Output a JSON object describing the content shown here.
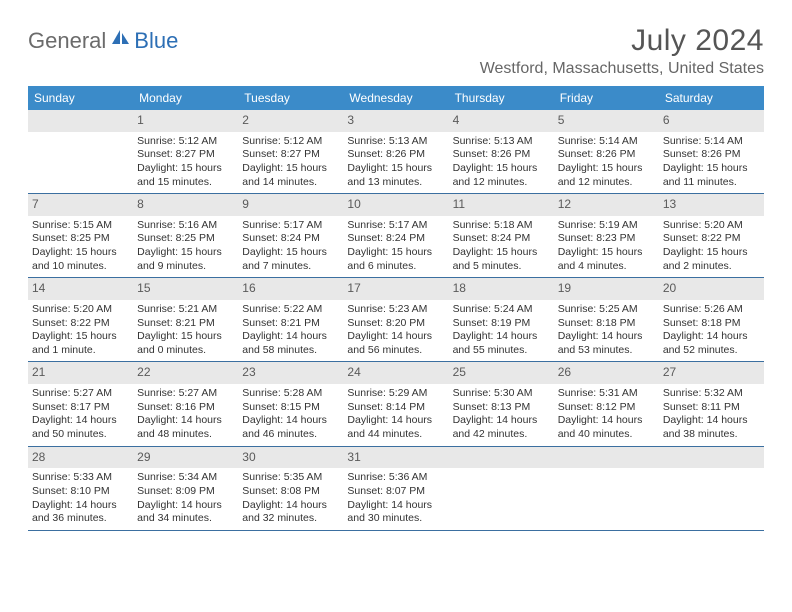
{
  "logo": {
    "text1": "General",
    "text2": "Blue"
  },
  "title": "July 2024",
  "location": "Westford, Massachusetts, United States",
  "colors": {
    "header_bg": "#3b8bc9",
    "header_text": "#ffffff",
    "daynum_bg": "#e8e8e8",
    "border": "#3b6fa0",
    "logo_gray": "#6b6b6b",
    "logo_blue": "#2d6fb5"
  },
  "dow": [
    "Sunday",
    "Monday",
    "Tuesday",
    "Wednesday",
    "Thursday",
    "Friday",
    "Saturday"
  ],
  "weeks": [
    [
      {
        "n": "",
        "l1": "",
        "l2": "",
        "l3": "",
        "l4": ""
      },
      {
        "n": "1",
        "l1": "Sunrise: 5:12 AM",
        "l2": "Sunset: 8:27 PM",
        "l3": "Daylight: 15 hours",
        "l4": "and 15 minutes."
      },
      {
        "n": "2",
        "l1": "Sunrise: 5:12 AM",
        "l2": "Sunset: 8:27 PM",
        "l3": "Daylight: 15 hours",
        "l4": "and 14 minutes."
      },
      {
        "n": "3",
        "l1": "Sunrise: 5:13 AM",
        "l2": "Sunset: 8:26 PM",
        "l3": "Daylight: 15 hours",
        "l4": "and 13 minutes."
      },
      {
        "n": "4",
        "l1": "Sunrise: 5:13 AM",
        "l2": "Sunset: 8:26 PM",
        "l3": "Daylight: 15 hours",
        "l4": "and 12 minutes."
      },
      {
        "n": "5",
        "l1": "Sunrise: 5:14 AM",
        "l2": "Sunset: 8:26 PM",
        "l3": "Daylight: 15 hours",
        "l4": "and 12 minutes."
      },
      {
        "n": "6",
        "l1": "Sunrise: 5:14 AM",
        "l2": "Sunset: 8:26 PM",
        "l3": "Daylight: 15 hours",
        "l4": "and 11 minutes."
      }
    ],
    [
      {
        "n": "7",
        "l1": "Sunrise: 5:15 AM",
        "l2": "Sunset: 8:25 PM",
        "l3": "Daylight: 15 hours",
        "l4": "and 10 minutes."
      },
      {
        "n": "8",
        "l1": "Sunrise: 5:16 AM",
        "l2": "Sunset: 8:25 PM",
        "l3": "Daylight: 15 hours",
        "l4": "and 9 minutes."
      },
      {
        "n": "9",
        "l1": "Sunrise: 5:17 AM",
        "l2": "Sunset: 8:24 PM",
        "l3": "Daylight: 15 hours",
        "l4": "and 7 minutes."
      },
      {
        "n": "10",
        "l1": "Sunrise: 5:17 AM",
        "l2": "Sunset: 8:24 PM",
        "l3": "Daylight: 15 hours",
        "l4": "and 6 minutes."
      },
      {
        "n": "11",
        "l1": "Sunrise: 5:18 AM",
        "l2": "Sunset: 8:24 PM",
        "l3": "Daylight: 15 hours",
        "l4": "and 5 minutes."
      },
      {
        "n": "12",
        "l1": "Sunrise: 5:19 AM",
        "l2": "Sunset: 8:23 PM",
        "l3": "Daylight: 15 hours",
        "l4": "and 4 minutes."
      },
      {
        "n": "13",
        "l1": "Sunrise: 5:20 AM",
        "l2": "Sunset: 8:22 PM",
        "l3": "Daylight: 15 hours",
        "l4": "and 2 minutes."
      }
    ],
    [
      {
        "n": "14",
        "l1": "Sunrise: 5:20 AM",
        "l2": "Sunset: 8:22 PM",
        "l3": "Daylight: 15 hours",
        "l4": "and 1 minute."
      },
      {
        "n": "15",
        "l1": "Sunrise: 5:21 AM",
        "l2": "Sunset: 8:21 PM",
        "l3": "Daylight: 15 hours",
        "l4": "and 0 minutes."
      },
      {
        "n": "16",
        "l1": "Sunrise: 5:22 AM",
        "l2": "Sunset: 8:21 PM",
        "l3": "Daylight: 14 hours",
        "l4": "and 58 minutes."
      },
      {
        "n": "17",
        "l1": "Sunrise: 5:23 AM",
        "l2": "Sunset: 8:20 PM",
        "l3": "Daylight: 14 hours",
        "l4": "and 56 minutes."
      },
      {
        "n": "18",
        "l1": "Sunrise: 5:24 AM",
        "l2": "Sunset: 8:19 PM",
        "l3": "Daylight: 14 hours",
        "l4": "and 55 minutes."
      },
      {
        "n": "19",
        "l1": "Sunrise: 5:25 AM",
        "l2": "Sunset: 8:18 PM",
        "l3": "Daylight: 14 hours",
        "l4": "and 53 minutes."
      },
      {
        "n": "20",
        "l1": "Sunrise: 5:26 AM",
        "l2": "Sunset: 8:18 PM",
        "l3": "Daylight: 14 hours",
        "l4": "and 52 minutes."
      }
    ],
    [
      {
        "n": "21",
        "l1": "Sunrise: 5:27 AM",
        "l2": "Sunset: 8:17 PM",
        "l3": "Daylight: 14 hours",
        "l4": "and 50 minutes."
      },
      {
        "n": "22",
        "l1": "Sunrise: 5:27 AM",
        "l2": "Sunset: 8:16 PM",
        "l3": "Daylight: 14 hours",
        "l4": "and 48 minutes."
      },
      {
        "n": "23",
        "l1": "Sunrise: 5:28 AM",
        "l2": "Sunset: 8:15 PM",
        "l3": "Daylight: 14 hours",
        "l4": "and 46 minutes."
      },
      {
        "n": "24",
        "l1": "Sunrise: 5:29 AM",
        "l2": "Sunset: 8:14 PM",
        "l3": "Daylight: 14 hours",
        "l4": "and 44 minutes."
      },
      {
        "n": "25",
        "l1": "Sunrise: 5:30 AM",
        "l2": "Sunset: 8:13 PM",
        "l3": "Daylight: 14 hours",
        "l4": "and 42 minutes."
      },
      {
        "n": "26",
        "l1": "Sunrise: 5:31 AM",
        "l2": "Sunset: 8:12 PM",
        "l3": "Daylight: 14 hours",
        "l4": "and 40 minutes."
      },
      {
        "n": "27",
        "l1": "Sunrise: 5:32 AM",
        "l2": "Sunset: 8:11 PM",
        "l3": "Daylight: 14 hours",
        "l4": "and 38 minutes."
      }
    ],
    [
      {
        "n": "28",
        "l1": "Sunrise: 5:33 AM",
        "l2": "Sunset: 8:10 PM",
        "l3": "Daylight: 14 hours",
        "l4": "and 36 minutes."
      },
      {
        "n": "29",
        "l1": "Sunrise: 5:34 AM",
        "l2": "Sunset: 8:09 PM",
        "l3": "Daylight: 14 hours",
        "l4": "and 34 minutes."
      },
      {
        "n": "30",
        "l1": "Sunrise: 5:35 AM",
        "l2": "Sunset: 8:08 PM",
        "l3": "Daylight: 14 hours",
        "l4": "and 32 minutes."
      },
      {
        "n": "31",
        "l1": "Sunrise: 5:36 AM",
        "l2": "Sunset: 8:07 PM",
        "l3": "Daylight: 14 hours",
        "l4": "and 30 minutes."
      },
      {
        "n": "",
        "l1": "",
        "l2": "",
        "l3": "",
        "l4": ""
      },
      {
        "n": "",
        "l1": "",
        "l2": "",
        "l3": "",
        "l4": ""
      },
      {
        "n": "",
        "l1": "",
        "l2": "",
        "l3": "",
        "l4": ""
      }
    ]
  ]
}
